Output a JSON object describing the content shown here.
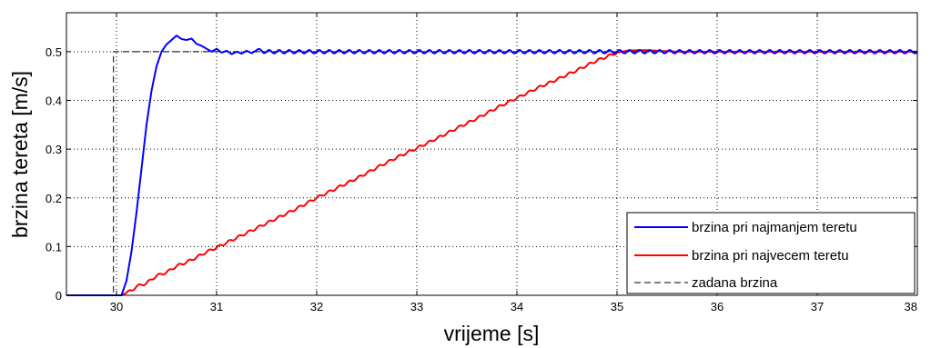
{
  "chart_data": {
    "type": "line",
    "title": "",
    "xlabel": "vrijeme [s]",
    "ylabel": "brzina tereta [m/s]",
    "xlim": [
      29.5,
      38
    ],
    "ylim": [
      0,
      0.58
    ],
    "xticks": [
      30,
      31,
      32,
      33,
      34,
      35,
      36,
      37,
      38
    ],
    "yticks": [
      0,
      0.1,
      0.2,
      0.3,
      0.4,
      0.5
    ],
    "x_tick_labels": [
      "30",
      "31",
      "32",
      "33",
      "34",
      "35",
      "36",
      "37",
      "38"
    ],
    "y_tick_labels": [
      "0",
      "0.1",
      "0.2",
      "0.3",
      "0.4",
      "0.5"
    ],
    "grid": true,
    "legend_position": "bottom-right",
    "series": [
      {
        "name": "brzina pri najmanjem teretu",
        "color": "#0000ff",
        "style": "solid",
        "points": [
          [
            29.5,
            0
          ],
          [
            30.05,
            0
          ],
          [
            30.1,
            0.03
          ],
          [
            30.15,
            0.09
          ],
          [
            30.2,
            0.17
          ],
          [
            30.25,
            0.26
          ],
          [
            30.3,
            0.35
          ],
          [
            30.35,
            0.42
          ],
          [
            30.4,
            0.47
          ],
          [
            30.45,
            0.5
          ],
          [
            30.5,
            0.515
          ],
          [
            30.55,
            0.524
          ],
          [
            30.6,
            0.533
          ],
          [
            30.65,
            0.526
          ],
          [
            30.7,
            0.524
          ],
          [
            30.75,
            0.527
          ],
          [
            30.8,
            0.516
          ],
          [
            30.85,
            0.512
          ],
          [
            30.9,
            0.506
          ],
          [
            30.95,
            0.5
          ],
          [
            31.0,
            0.506
          ],
          [
            31.05,
            0.498
          ],
          [
            31.1,
            0.502
          ],
          [
            31.15,
            0.495
          ],
          [
            31.2,
            0.5
          ],
          [
            31.25,
            0.496
          ],
          [
            31.3,
            0.502
          ],
          [
            31.35,
            0.497
          ],
          [
            31.4,
            0.503
          ],
          [
            31.5,
            0.5
          ],
          [
            38,
            0.5
          ]
        ],
        "oscillation": {
          "from": 31.4,
          "amplitude": 0.0035,
          "period": 0.1
        }
      },
      {
        "name": "brzina pri najvecem teretu",
        "color": "#ff0000",
        "style": "solid",
        "points": [
          [
            29.5,
            0
          ],
          [
            30.05,
            0
          ],
          [
            30.15,
            0.01
          ],
          [
            30.2,
            0.018
          ],
          [
            30.3,
            0.025
          ],
          [
            30.4,
            0.04
          ],
          [
            30.5,
            0.047
          ],
          [
            30.6,
            0.06
          ],
          [
            30.7,
            0.068
          ],
          [
            30.8,
            0.078
          ],
          [
            30.9,
            0.089
          ],
          [
            31.0,
            0.098
          ],
          [
            31.2,
            0.118
          ],
          [
            31.4,
            0.138
          ],
          [
            31.6,
            0.158
          ],
          [
            31.8,
            0.178
          ],
          [
            32.0,
            0.2
          ],
          [
            32.2,
            0.22
          ],
          [
            32.4,
            0.24
          ],
          [
            32.6,
            0.262
          ],
          [
            32.8,
            0.283
          ],
          [
            33.0,
            0.302
          ],
          [
            33.2,
            0.322
          ],
          [
            33.4,
            0.343
          ],
          [
            33.6,
            0.363
          ],
          [
            33.8,
            0.385
          ],
          [
            34.0,
            0.405
          ],
          [
            34.2,
            0.425
          ],
          [
            34.4,
            0.443
          ],
          [
            34.6,
            0.462
          ],
          [
            34.8,
            0.482
          ],
          [
            35.0,
            0.498
          ],
          [
            35.1,
            0.502
          ],
          [
            35.2,
            0.503
          ],
          [
            35.3,
            0.503
          ],
          [
            35.4,
            0.502
          ],
          [
            35.6,
            0.5
          ],
          [
            38,
            0.5
          ]
        ],
        "oscillation": {
          "from": 30.1,
          "to": 35.0,
          "amplitude": 0.0025,
          "period": 0.1
        }
      },
      {
        "name": "zadana brzina",
        "color": "#000000",
        "style": "dashed",
        "points": [
          [
            29.5,
            0
          ],
          [
            29.97,
            0
          ],
          [
            29.97,
            0.5
          ],
          [
            38,
            0.5
          ]
        ]
      }
    ]
  }
}
